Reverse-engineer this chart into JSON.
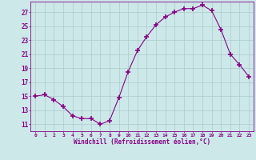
{
  "x": [
    0,
    1,
    2,
    3,
    4,
    5,
    6,
    7,
    8,
    9,
    10,
    11,
    12,
    13,
    14,
    15,
    16,
    17,
    18,
    19,
    20,
    21,
    22,
    23
  ],
  "y": [
    15.0,
    15.2,
    14.5,
    13.5,
    12.2,
    11.8,
    11.8,
    11.0,
    11.5,
    14.8,
    18.5,
    21.5,
    23.5,
    25.2,
    26.3,
    27.0,
    27.5,
    27.5,
    28.0,
    27.2,
    24.5,
    21.0,
    19.5,
    17.8
  ],
  "line_color": "#880088",
  "marker": "+",
  "marker_size": 4,
  "marker_lw": 1.2,
  "bg_color": "#cce8e8",
  "grid_color": "#aacccc",
  "xlabel": "Windchill (Refroidissement éolien,°C)",
  "yticks": [
    11,
    13,
    15,
    17,
    19,
    21,
    23,
    25,
    27
  ],
  "xticks": [
    0,
    1,
    2,
    3,
    4,
    5,
    6,
    7,
    8,
    9,
    10,
    11,
    12,
    13,
    14,
    15,
    16,
    17,
    18,
    19,
    20,
    21,
    22,
    23
  ],
  "ylim": [
    10.0,
    28.5
  ],
  "xlim": [
    -0.5,
    23.5
  ]
}
